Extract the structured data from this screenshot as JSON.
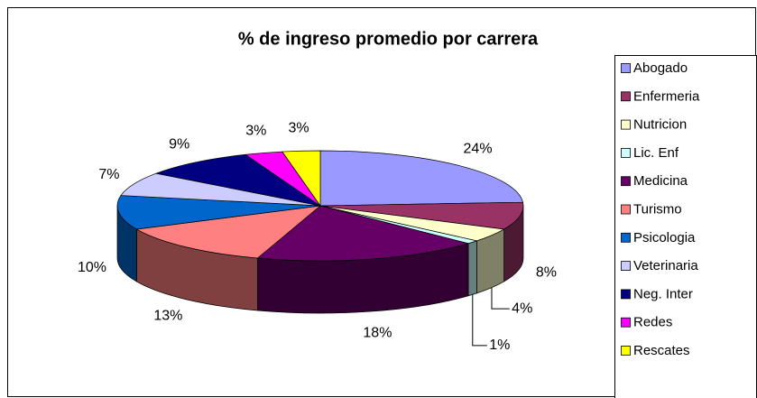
{
  "chart_data": {
    "type": "pie3d",
    "title": "% de ingreso promedio por carrera",
    "categories": [
      "Abogado",
      "Enfermeria",
      "Nutricion",
      "Lic. Enf",
      "Medicina",
      "Turismo",
      "Psicologia",
      "Veterinaria",
      "Neg. Inter",
      "Redes",
      "Rescates"
    ],
    "values": [
      24,
      8,
      4,
      1,
      18,
      13,
      10,
      7,
      9,
      3,
      3
    ],
    "value_labels": [
      "24%",
      "8%",
      "4%",
      "1%",
      "18%",
      "13%",
      "10%",
      "7%",
      "9%",
      "3%",
      "3%"
    ],
    "colors": [
      "#9999ff",
      "#993366",
      "#ffffcc",
      "#ccffff",
      "#660066",
      "#ff8080",
      "#0066cc",
      "#ccccff",
      "#000080",
      "#ff00ff",
      "#ffff00"
    ],
    "legend": "right"
  }
}
